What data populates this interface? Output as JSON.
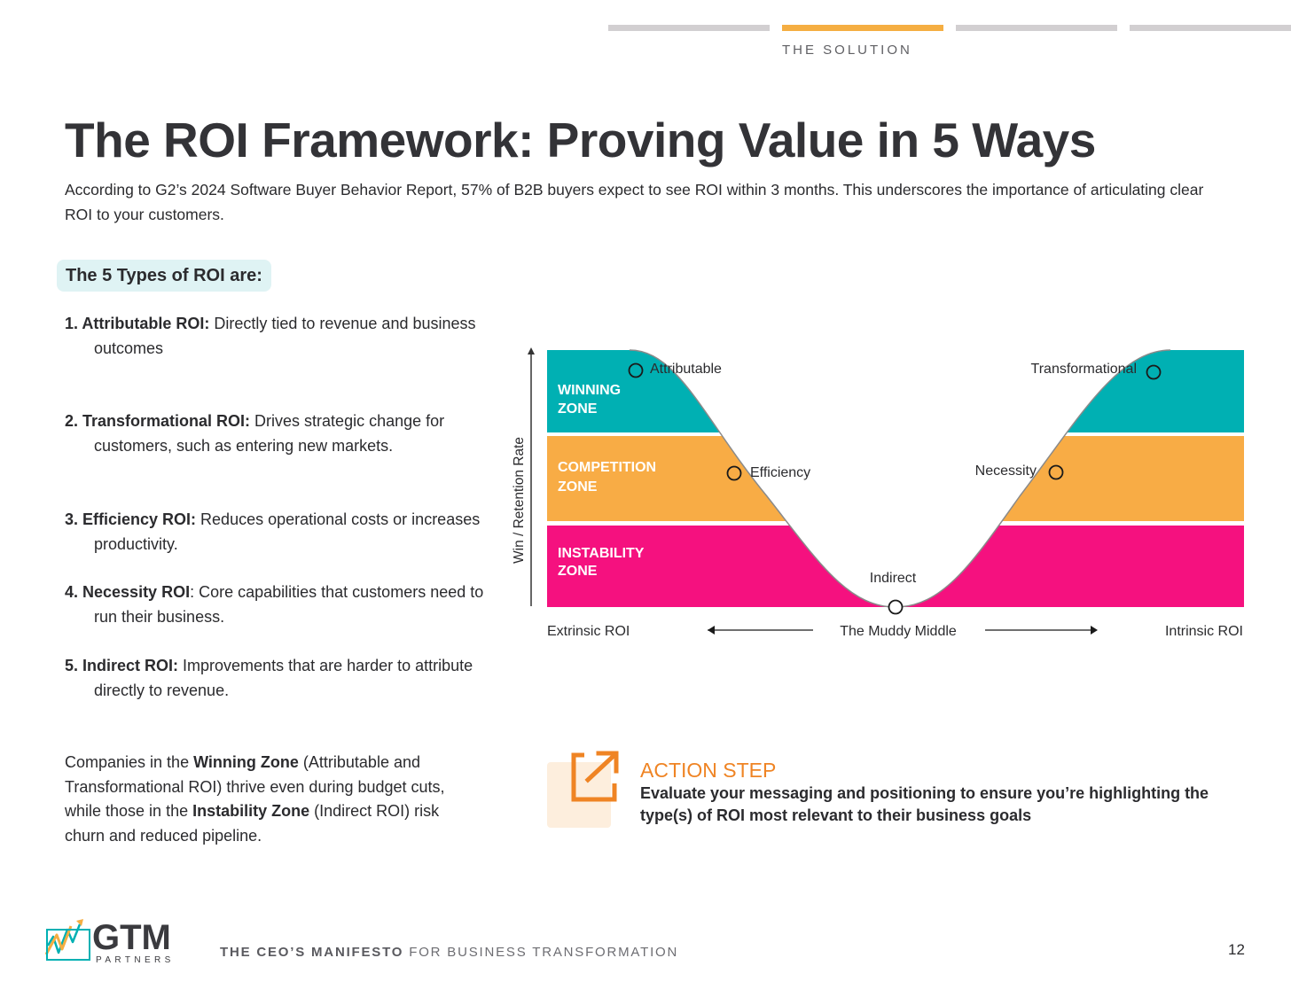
{
  "header": {
    "section_label": "THE SOLUTION",
    "progress": {
      "total_steps": 4,
      "current_step": 2
    }
  },
  "title": "The ROI Framework: Proving Value in 5 Ways",
  "intro": "According to G2’s 2024 Software Buyer Behavior Report, 57% of B2B buyers expect to see ROI within 3 months. This underscores the importance of articulating clear ROI to your customers.",
  "types_heading": "The 5 Types of ROI are:",
  "roi_types": [
    {
      "label": "1. Attributable ROI:",
      "text": " Directly tied to revenue and business outcomes"
    },
    {
      "label": "2. Transformational ROI:",
      "text": " Drives strategic change for customers, such as entering new markets."
    },
    {
      "label": "3. Efficiency ROI:",
      "text": " Reduces operational costs or increases productivity."
    },
    {
      "label": "4. Necessity ROI",
      "text": ": Core capabilities that customers need to run their business."
    },
    {
      "label": "5. Indirect ROI:",
      "text": " Improvements that are harder to attribute directly to revenue."
    }
  ],
  "zones_paragraph": {
    "p1": "Companies in the ",
    "b1": "Winning Zone",
    "p2": " (Attributable and Transformational ROI) thrive even during budget cuts, while those in the ",
    "b2": "Instability Zone",
    "p3": " (Indirect ROI) risk churn and reduced pipeline."
  },
  "chart": {
    "y_axis_label": "Win / Retention Rate",
    "zones": {
      "winning": [
        "WINNING",
        "ZONE"
      ],
      "competition": [
        "COMPETITION",
        "ZONE"
      ],
      "instability": [
        "INSTABILITY",
        "ZONE"
      ]
    },
    "points": {
      "attributable": "Attributable",
      "efficiency": "Efficiency",
      "indirect": "Indirect",
      "necessity": "Necessity",
      "transformational": "Transformational"
    },
    "x_axis": {
      "left": "Extrinsic ROI",
      "middle": "The Muddy Middle",
      "right": "Intrinsic ROI"
    }
  },
  "action": {
    "title": "ACTION STEP",
    "text": "Evaluate your messaging and positioning to ensure you’re highlighting the type(s) of ROI most relevant to their business goals"
  },
  "footer": {
    "logo_name": "GTM",
    "logo_sub": "PARTNERS",
    "manifesto_bold": "THE CEO’S MANIFESTO",
    "manifesto_rest": " FOR BUSINESS TRANSFORMATION",
    "page_number": "12"
  },
  "colors": {
    "winning": "#00b0b3",
    "competition": "#f8ac45",
    "instability": "#f5117f",
    "accent_orange": "#ef8424",
    "progress_active": "#f5ae42",
    "progress_inactive": "#d2cfd1"
  }
}
